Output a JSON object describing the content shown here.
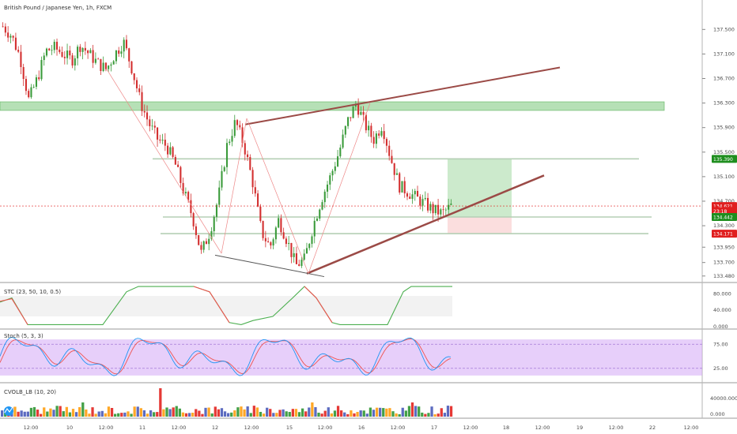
{
  "header": {
    "title": "British Pound / Japanese Yen, 1h, FXCM"
  },
  "colors": {
    "up": "#3b9b3b",
    "down": "#d32f2f",
    "zone": "#8fd08f",
    "trend": "#9b4a46",
    "stc": "#4caf50",
    "stc_down": "#ef5350",
    "stoch_k": "#2196f3",
    "stoch_d": "#ef5350",
    "stoch_band": "#d4a8f5",
    "tag_green": "#1e8e1e",
    "tag_red": "#e01e1e"
  },
  "price_axis": {
    "ticks": [
      "137.500",
      "137.100",
      "136.700",
      "136.300",
      "135.900",
      "135.500",
      "135.100",
      "134.700",
      "134.300",
      "133.950",
      "133.700",
      "133.480"
    ],
    "tags": [
      {
        "label": "135.390",
        "kind": "green"
      },
      {
        "label": "134.621",
        "kind": "red"
      },
      {
        "label": "23:18",
        "kind": "red"
      },
      {
        "label": "134.442",
        "kind": "green"
      },
      {
        "label": "134.171",
        "kind": "red"
      }
    ]
  },
  "time_axis": {
    "ticks": [
      "12:00",
      "10",
      "12:00",
      "11",
      "12:00",
      "12",
      "12:00",
      "15",
      "12:00",
      "16",
      "12:00",
      "17",
      "12:00",
      "18",
      "12:00",
      "19",
      "12:00",
      "22",
      "12:00"
    ]
  },
  "indicators": {
    "stc": {
      "label": "STC (23, 50, 10, 0.5)",
      "ticks": [
        "80.000",
        "40.000",
        "0.000"
      ]
    },
    "stoch": {
      "label": "Stoch (5, 3, 3)",
      "ticks": [
        "75.00",
        "25.00"
      ]
    },
    "cvol": {
      "label": "CVOLB_LB (10, 20)",
      "ticks": [
        "40000.000",
        "0.000"
      ]
    }
  },
  "chart_data": {
    "type": "candlestick",
    "title": "British Pound / Japanese Yen, 1h, FXCM",
    "ylim": [
      133.4,
      137.8
    ],
    "anchors": [
      137.55,
      137.4,
      137.05,
      136.35,
      136.7,
      137.15,
      137.2,
      137.1,
      137.0,
      137.25,
      137.1,
      136.95,
      136.85,
      137.1,
      137.3,
      136.85,
      136.3,
      135.95,
      135.7,
      135.6,
      135.3,
      134.85,
      134.45,
      133.85,
      134.2,
      134.75,
      135.6,
      136.0,
      135.6,
      135.0,
      134.2,
      133.95,
      134.4,
      134.05,
      133.65,
      133.75,
      134.3,
      134.75,
      135.1,
      135.5,
      136.0,
      136.3,
      135.95,
      135.7,
      135.95,
      135.4,
      134.95,
      134.85,
      134.75,
      134.65,
      134.55,
      134.5,
      134.62
    ],
    "annotations": {
      "resistance_zone": [
        136.18,
        136.32
      ],
      "horizontal_lines": [
        135.39,
        134.442,
        134.171
      ],
      "target_box": [
        134.442,
        135.39
      ],
      "stop_box": [
        134.171,
        134.442
      ],
      "last_price": 134.621
    }
  }
}
